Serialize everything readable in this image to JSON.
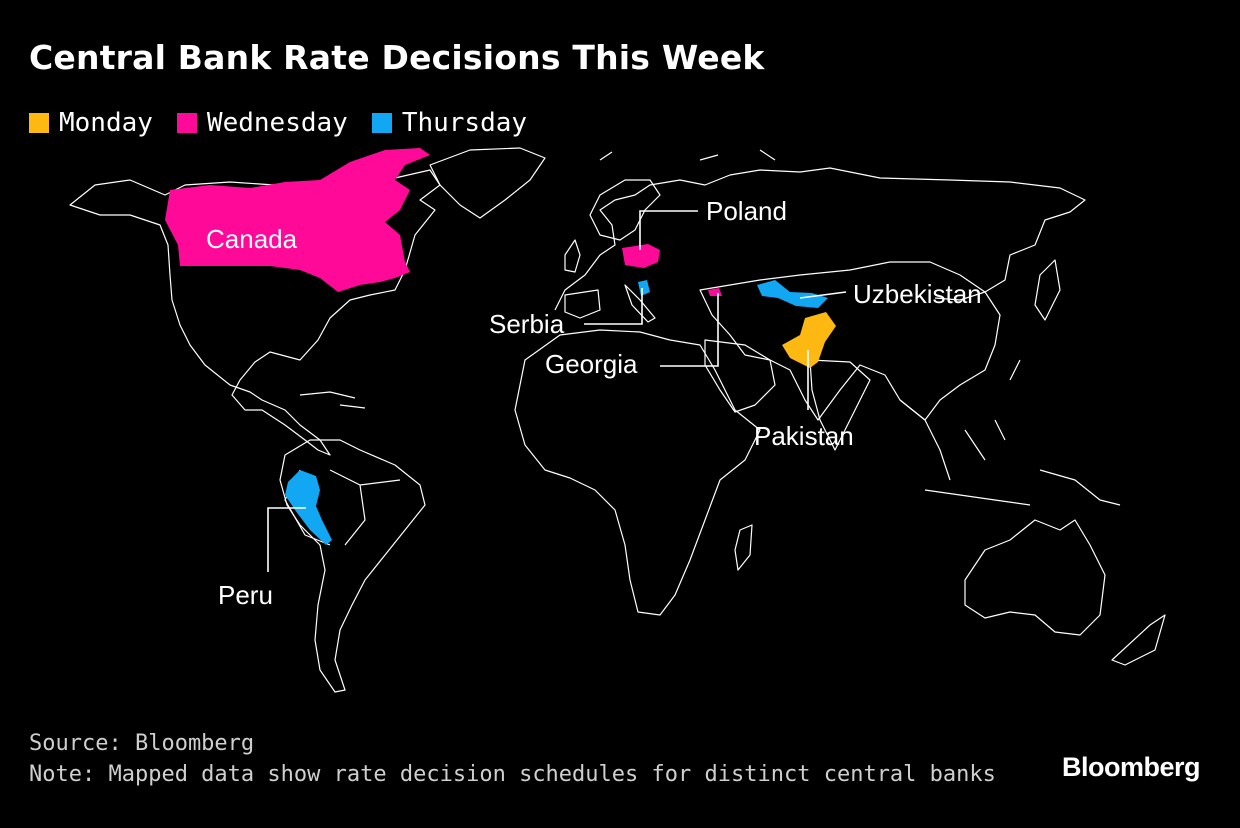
{
  "title": "Central Bank Rate Decisions This Week",
  "legend": [
    {
      "label": "Monday",
      "color": "#FDB812"
    },
    {
      "label": "Wednesday",
      "color": "#FF0A98"
    },
    {
      "label": "Thursday",
      "color": "#12A7F2"
    }
  ],
  "countries": [
    {
      "name": "Canada",
      "day": "Wednesday"
    },
    {
      "name": "Poland",
      "day": "Wednesday"
    },
    {
      "name": "Serbia",
      "day": "Thursday"
    },
    {
      "name": "Georgia",
      "day": "Wednesday"
    },
    {
      "name": "Uzbekistan",
      "day": "Thursday"
    },
    {
      "name": "Pakistan",
      "day": "Monday"
    },
    {
      "name": "Peru",
      "day": "Thursday"
    }
  ],
  "footer": {
    "source": "Source: Bloomberg",
    "note": "Note: Mapped data show rate decision schedules for distinct central banks"
  },
  "brand": "Bloomberg"
}
